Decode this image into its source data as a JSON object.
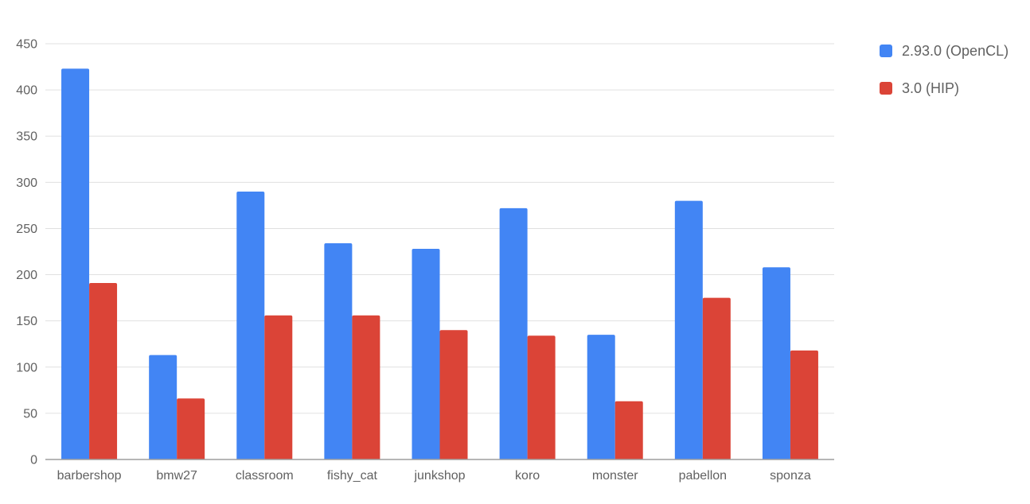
{
  "chart_data": {
    "type": "bar",
    "title": "",
    "xlabel": "",
    "ylabel": "",
    "categories": [
      "barbershop",
      "bmw27",
      "classroom",
      "fishy_cat",
      "junkshop",
      "koro",
      "monster",
      "pabellon",
      "sponza"
    ],
    "series": [
      {
        "name": "2.93.0 (OpenCL)",
        "color": "#4285f4",
        "values": [
          423,
          113,
          290,
          234,
          228,
          272,
          135,
          280,
          208
        ]
      },
      {
        "name": "3.0 (HIP)",
        "color": "#db4437",
        "values": [
          191,
          66,
          156,
          156,
          140,
          134,
          63,
          175,
          118
        ]
      }
    ],
    "ylim": [
      0,
      450
    ],
    "yticks": [
      0,
      50,
      100,
      150,
      200,
      250,
      300,
      350,
      400,
      450
    ],
    "grid": true,
    "legend_position": "right"
  }
}
